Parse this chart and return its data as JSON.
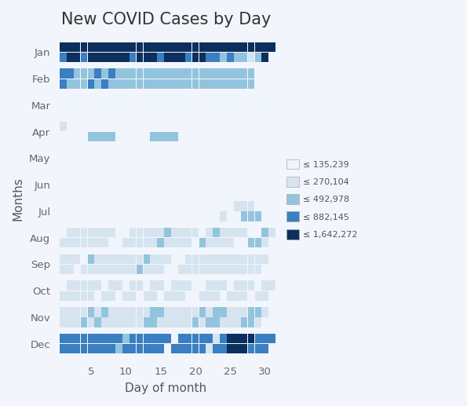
{
  "title": "New COVID Cases by Day",
  "xlabel": "Day of month",
  "ylabel": "Months",
  "months": [
    "Jan",
    "Feb",
    "Mar",
    "Apr",
    "May",
    "Jun",
    "Jul",
    "Aug",
    "Sep",
    "Oct",
    "Nov",
    "Dec"
  ],
  "days": 31,
  "legend_labels": [
    "≤ 135,239",
    "≤ 270,104",
    "≤ 492,978",
    "≤ 882,145",
    "≤ 1,642,272"
  ],
  "background_color": "#f2f6fc",
  "title_fontsize": 15,
  "axis_label_fontsize": 11,
  "tick_fontsize": 9.5,
  "cell_colors": [
    "#f0f4fb",
    "#d6e4f0",
    "#93c4de",
    "#3a7fc1",
    "#0d2f5e"
  ],
  "data": {
    "Jan": [
      [
        4,
        4,
        4,
        4,
        4,
        4,
        4,
        4,
        4,
        4,
        4,
        4,
        4,
        4,
        4,
        4,
        4,
        4,
        4,
        4,
        4,
        4,
        4,
        4,
        4,
        4,
        4,
        4,
        4,
        4,
        4
      ],
      [
        3,
        4,
        4,
        3,
        4,
        4,
        4,
        4,
        4,
        4,
        3,
        4,
        4,
        4,
        3,
        4,
        4,
        4,
        3,
        4,
        4,
        3,
        3,
        2,
        3,
        2,
        2,
        1,
        2,
        4,
        0
      ]
    ],
    "Feb": [
      [
        3,
        3,
        2,
        2,
        2,
        3,
        2,
        3,
        2,
        2,
        2,
        2,
        2,
        2,
        2,
        2,
        2,
        2,
        2,
        2,
        2,
        2,
        2,
        2,
        2,
        2,
        2,
        2,
        0,
        0,
        0
      ],
      [
        3,
        2,
        2,
        2,
        3,
        2,
        3,
        2,
        2,
        2,
        2,
        2,
        2,
        2,
        2,
        2,
        2,
        2,
        2,
        2,
        2,
        2,
        2,
        2,
        2,
        2,
        2,
        2,
        0,
        0,
        0
      ]
    ],
    "Mar": [
      [
        0,
        0,
        0,
        0,
        0,
        0,
        0,
        0,
        0,
        0,
        0,
        0,
        0,
        0,
        0,
        0,
        0,
        0,
        0,
        0,
        0,
        0,
        0,
        0,
        0,
        0,
        0,
        0,
        0,
        0,
        0
      ],
      [
        0,
        0,
        0,
        0,
        0,
        0,
        0,
        0,
        0,
        0,
        0,
        0,
        0,
        0,
        0,
        0,
        0,
        0,
        0,
        0,
        0,
        0,
        0,
        0,
        0,
        0,
        0,
        0,
        0,
        0,
        0
      ]
    ],
    "Apr": [
      [
        1,
        0,
        0,
        0,
        0,
        0,
        0,
        0,
        0,
        0,
        0,
        0,
        0,
        0,
        0,
        0,
        0,
        0,
        0,
        0,
        0,
        0,
        0,
        0,
        0,
        0,
        0,
        0,
        0,
        0,
        0
      ],
      [
        0,
        0,
        0,
        0,
        2,
        2,
        2,
        2,
        0,
        0,
        0,
        0,
        0,
        2,
        2,
        2,
        2,
        0,
        0,
        0,
        0,
        0,
        0,
        0,
        0,
        0,
        0,
        0,
        0,
        0,
        0
      ]
    ],
    "May": [
      [
        0,
        0,
        0,
        0,
        0,
        0,
        0,
        0,
        0,
        0,
        0,
        0,
        0,
        0,
        0,
        0,
        0,
        0,
        0,
        0,
        0,
        0,
        0,
        0,
        0,
        0,
        0,
        0,
        0,
        0,
        0
      ],
      [
        0,
        0,
        0,
        0,
        0,
        0,
        0,
        0,
        0,
        0,
        0,
        0,
        0,
        0,
        0,
        0,
        0,
        0,
        0,
        0,
        0,
        0,
        0,
        0,
        0,
        0,
        0,
        0,
        0,
        0,
        0
      ]
    ],
    "Jun": [
      [
        0,
        0,
        0,
        0,
        0,
        0,
        0,
        0,
        0,
        0,
        0,
        0,
        0,
        0,
        0,
        0,
        0,
        0,
        0,
        0,
        0,
        0,
        0,
        0,
        0,
        0,
        0,
        0,
        0,
        0,
        0
      ],
      [
        0,
        0,
        0,
        0,
        0,
        0,
        0,
        0,
        0,
        0,
        0,
        0,
        0,
        0,
        0,
        0,
        0,
        0,
        0,
        0,
        0,
        0,
        0,
        0,
        0,
        0,
        0,
        0,
        0,
        0,
        0
      ]
    ],
    "Jul": [
      [
        0,
        0,
        0,
        0,
        0,
        0,
        0,
        0,
        0,
        0,
        0,
        0,
        0,
        0,
        0,
        0,
        0,
        0,
        0,
        0,
        0,
        0,
        0,
        0,
        0,
        1,
        1,
        1,
        0,
        0,
        0
      ],
      [
        0,
        0,
        0,
        0,
        0,
        0,
        0,
        0,
        0,
        0,
        0,
        0,
        0,
        0,
        0,
        0,
        0,
        0,
        0,
        0,
        0,
        0,
        0,
        1,
        0,
        0,
        2,
        2,
        2,
        0,
        0
      ]
    ],
    "Aug": [
      [
        0,
        1,
        1,
        1,
        1,
        1,
        1,
        1,
        0,
        0,
        1,
        1,
        1,
        1,
        1,
        2,
        1,
        1,
        1,
        1,
        0,
        1,
        2,
        1,
        1,
        1,
        1,
        0,
        0,
        2,
        1
      ],
      [
        1,
        1,
        1,
        1,
        1,
        1,
        1,
        0,
        0,
        1,
        1,
        1,
        1,
        1,
        2,
        1,
        1,
        1,
        1,
        0,
        2,
        1,
        1,
        1,
        1,
        0,
        0,
        2,
        2,
        1,
        0
      ]
    ],
    "Sep": [
      [
        1,
        1,
        1,
        0,
        2,
        1,
        1,
        1,
        1,
        1,
        1,
        1,
        2,
        1,
        1,
        1,
        0,
        0,
        1,
        1,
        1,
        1,
        1,
        1,
        1,
        1,
        1,
        1,
        1,
        1,
        0
      ],
      [
        1,
        1,
        0,
        1,
        1,
        1,
        1,
        1,
        1,
        1,
        1,
        2,
        1,
        1,
        1,
        0,
        0,
        1,
        1,
        1,
        1,
        1,
        1,
        1,
        1,
        1,
        1,
        1,
        1,
        0,
        0
      ]
    ],
    "Oct": [
      [
        0,
        1,
        1,
        1,
        1,
        1,
        0,
        1,
        1,
        0,
        1,
        1,
        0,
        1,
        1,
        0,
        1,
        1,
        1,
        0,
        0,
        1,
        1,
        1,
        0,
        1,
        1,
        1,
        0,
        1,
        1
      ],
      [
        1,
        1,
        1,
        1,
        1,
        0,
        1,
        1,
        0,
        1,
        1,
        0,
        1,
        1,
        0,
        1,
        1,
        1,
        0,
        0,
        1,
        1,
        1,
        0,
        1,
        1,
        1,
        0,
        1,
        1,
        0
      ]
    ],
    "Nov": [
      [
        1,
        1,
        1,
        1,
        2,
        1,
        2,
        1,
        1,
        1,
        1,
        1,
        1,
        2,
        2,
        1,
        1,
        1,
        1,
        1,
        2,
        1,
        2,
        2,
        1,
        1,
        1,
        2,
        2,
        1,
        0
      ],
      [
        1,
        1,
        1,
        2,
        1,
        2,
        1,
        1,
        1,
        1,
        1,
        1,
        2,
        2,
        1,
        1,
        1,
        1,
        1,
        2,
        1,
        2,
        2,
        1,
        1,
        1,
        2,
        2,
        1,
        0,
        0
      ]
    ],
    "Dec": [
      [
        3,
        3,
        3,
        3,
        3,
        3,
        3,
        3,
        3,
        2,
        3,
        3,
        3,
        3,
        3,
        3,
        0,
        3,
        3,
        3,
        3,
        3,
        1,
        3,
        4,
        4,
        4,
        4,
        3,
        3,
        3
      ],
      [
        3,
        3,
        3,
        3,
        3,
        3,
        3,
        3,
        2,
        3,
        3,
        3,
        3,
        3,
        3,
        0,
        3,
        3,
        3,
        3,
        3,
        1,
        3,
        3,
        4,
        4,
        4,
        3,
        3,
        3,
        0
      ]
    ]
  }
}
